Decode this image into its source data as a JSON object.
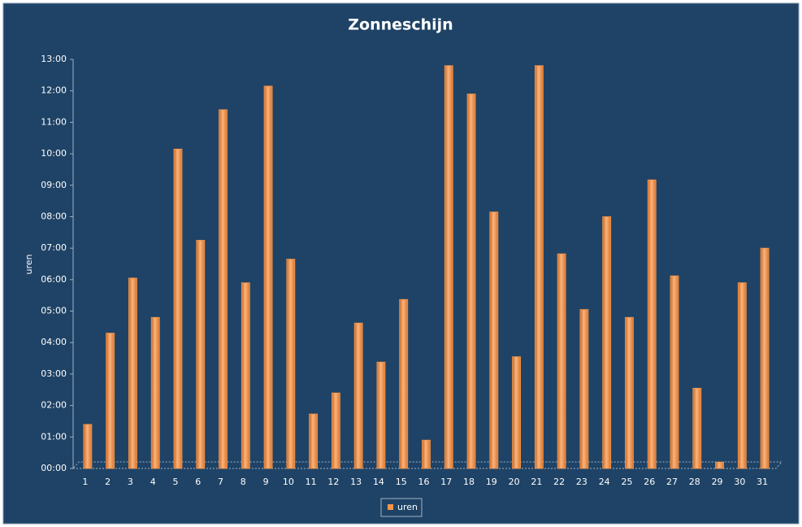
{
  "chart_data": {
    "type": "bar",
    "title": "Zonneschijn",
    "y_label": "uren",
    "categories": [
      "1",
      "2",
      "3",
      "4",
      "5",
      "6",
      "7",
      "8",
      "9",
      "10",
      "11",
      "12",
      "13",
      "14",
      "15",
      "16",
      "17",
      "18",
      "19",
      "20",
      "21",
      "22",
      "23",
      "24",
      "25",
      "26",
      "27",
      "28",
      "29",
      "30",
      "31"
    ],
    "series": [
      {
        "name": "uren",
        "color": "#f79646",
        "values": [
          1.4,
          4.3,
          6.05,
          4.8,
          10.15,
          7.25,
          11.4,
          5.9,
          12.15,
          6.65,
          1.73,
          2.4,
          4.62,
          3.38,
          5.37,
          0.9,
          12.8,
          11.9,
          8.15,
          3.55,
          12.8,
          6.82,
          5.05,
          8.0,
          4.8,
          9.17,
          6.12,
          2.55,
          0.2,
          5.9,
          7.0
        ]
      }
    ],
    "ylim": [
      0,
      13
    ],
    "yticks": [
      {
        "value": 0,
        "label": "00:00"
      },
      {
        "value": 1,
        "label": "01:00"
      },
      {
        "value": 2,
        "label": "02:00"
      },
      {
        "value": 3,
        "label": "03:00"
      },
      {
        "value": 4,
        "label": "04:00"
      },
      {
        "value": 5,
        "label": "05:00"
      },
      {
        "value": 6,
        "label": "06:00"
      },
      {
        "value": 7,
        "label": "07:00"
      },
      {
        "value": 8,
        "label": "08:00"
      },
      {
        "value": 9,
        "label": "09:00"
      },
      {
        "value": 10,
        "label": "10:00"
      },
      {
        "value": 11,
        "label": "11:00"
      },
      {
        "value": 12,
        "label": "12:00"
      },
      {
        "value": 13,
        "label": "13:00"
      }
    ],
    "grid": false,
    "legend": "bottom"
  }
}
